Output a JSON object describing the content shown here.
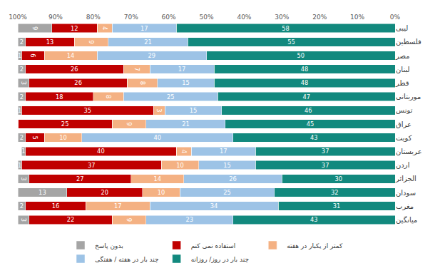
{
  "chart_data": {
    "type": "bar",
    "orientation": "horizontal",
    "stacked": true,
    "data_labels": true,
    "grid": false,
    "legend": "bottom",
    "categories": [
      "لیبی",
      "فلسطین",
      "مصر",
      "لبنان",
      "قطر",
      "موریتانی",
      "تونس",
      "عراق",
      "کویت",
      "عربستان",
      "اردن",
      "الجزائر",
      "سودان",
      "مغرب",
      "میانگین"
    ],
    "series": [
      {
        "name": "چند بار در روز/ روزانه",
        "color": "#12897E",
        "values": [
          58,
          55,
          50,
          48,
          48,
          47,
          46,
          45,
          43,
          37,
          37,
          30,
          32,
          31,
          43
        ]
      },
      {
        "name": "چند بار در هفته / هفتگی",
        "color": "#9DC3E6",
        "values": [
          17,
          21,
          29,
          17,
          15,
          25,
          15,
          21,
          40,
          17,
          15,
          26,
          25,
          34,
          23
        ]
      },
      {
        "name": "کمتر از یکبار در هفته",
        "color": "#F4B183",
        "values": [
          4,
          9,
          14,
          7,
          8,
          8,
          3,
          9,
          10,
          4,
          10,
          14,
          10,
          17,
          9
        ]
      },
      {
        "name": "استفاده نمی کنم",
        "color": "#C00000",
        "values": [
          12,
          13,
          6,
          26,
          26,
          18,
          35,
          25,
          5,
          40,
          37,
          27,
          20,
          16,
          22
        ]
      },
      {
        "name": "بدون پاسخ",
        "color": "#A5A5A5",
        "values": [
          9,
          2,
          1,
          2,
          3,
          2,
          1,
          0,
          2,
          1,
          1,
          3,
          13,
          2,
          3
        ]
      }
    ],
    "xlim": [
      100,
      0
    ],
    "xticks": [
      {
        "value": 100,
        "label": "100%"
      },
      {
        "value": 90,
        "label": "90%"
      },
      {
        "value": 80,
        "label": "80%"
      },
      {
        "value": 70,
        "label": "70%"
      },
      {
        "value": 60,
        "label": "60%"
      },
      {
        "value": 50,
        "label": "50%"
      },
      {
        "value": 40,
        "label": "40%"
      },
      {
        "value": 30,
        "label": "30%"
      },
      {
        "value": 20,
        "label": "20%"
      },
      {
        "value": 10,
        "label": "10%"
      },
      {
        "value": 0,
        "label": "0%"
      }
    ]
  }
}
